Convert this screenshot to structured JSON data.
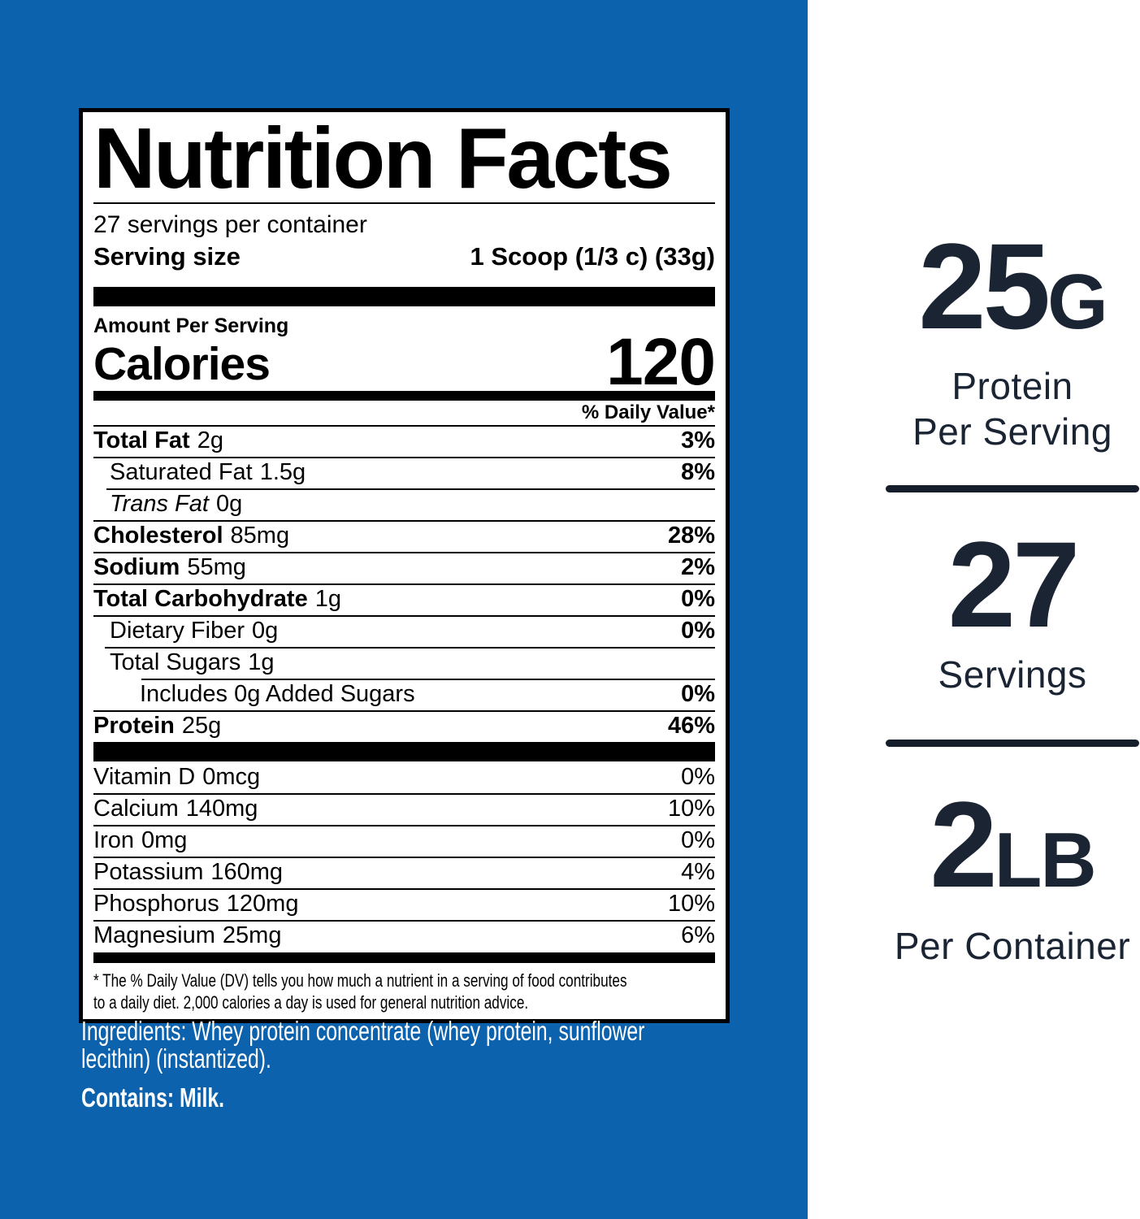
{
  "colors": {
    "background_blue": "#0d62ad",
    "label_background": "#ffffff",
    "label_ink": "#000000",
    "navy_ink": "#1a2433"
  },
  "label": {
    "title": "Nutrition Facts",
    "servings_per_container": "27 servings per container",
    "serving_size_label": "Serving size",
    "serving_size_value": "1 Scoop (1/3 c) (33g)",
    "amount_per_serving": "Amount Per Serving",
    "calories_label": "Calories",
    "calories_value": "120",
    "daily_value_header": "% Daily Value*",
    "nutrients": [
      {
        "name": "Total Fat",
        "amount": "2g",
        "dv": "3%",
        "indent": 0,
        "name_bold": true,
        "name_italic": false,
        "dv_bold": true,
        "divider_indent": 0
      },
      {
        "name": "Saturated Fat",
        "amount": "1.5g",
        "dv": "8%",
        "indent": 1,
        "name_bold": false,
        "name_italic": false,
        "dv_bold": true,
        "divider_indent": 0
      },
      {
        "name": "Trans Fat",
        "amount": "0g",
        "dv": "",
        "indent": 1,
        "name_bold": false,
        "name_italic": true,
        "dv_bold": true,
        "divider_indent": 16
      },
      {
        "name": "Cholesterol",
        "amount": "85mg",
        "dv": "28%",
        "indent": 0,
        "name_bold": true,
        "name_italic": false,
        "dv_bold": true,
        "divider_indent": 0
      },
      {
        "name": "Sodium",
        "amount": "55mg",
        "dv": "2%",
        "indent": 0,
        "name_bold": true,
        "name_italic": false,
        "dv_bold": true,
        "divider_indent": 0
      },
      {
        "name": "Total Carbohydrate",
        "amount": "1g",
        "dv": "0%",
        "indent": 0,
        "name_bold": true,
        "name_italic": false,
        "dv_bold": true,
        "divider_indent": 0
      },
      {
        "name": "Dietary Fiber",
        "amount": "0g",
        "dv": "0%",
        "indent": 1,
        "name_bold": false,
        "name_italic": false,
        "dv_bold": true,
        "divider_indent": 0
      },
      {
        "name": "Total Sugars",
        "amount": "1g",
        "dv": "",
        "indent": 1,
        "name_bold": false,
        "name_italic": false,
        "dv_bold": true,
        "divider_indent": 14
      },
      {
        "name": "Includes 0g Added Sugars",
        "amount": "",
        "dv": "0%",
        "indent": 2,
        "name_bold": false,
        "name_italic": false,
        "dv_bold": true,
        "divider_indent": 59
      },
      {
        "name": "Protein",
        "amount": "25g",
        "dv": "46%",
        "indent": 0,
        "name_bold": true,
        "name_italic": false,
        "dv_bold": true,
        "divider_indent": 0
      }
    ],
    "micronutrients": [
      {
        "name": "Vitamin D",
        "amount": "0mcg",
        "dv": "0%"
      },
      {
        "name": "Calcium",
        "amount": "140mg",
        "dv": "10%"
      },
      {
        "name": "Iron",
        "amount": "0mg",
        "dv": "0%"
      },
      {
        "name": "Potassium",
        "amount": "160mg",
        "dv": "4%"
      },
      {
        "name": "Phosphorus",
        "amount": "120mg",
        "dv": "10%"
      },
      {
        "name": "Magnesium",
        "amount": "25mg",
        "dv": "6%"
      }
    ],
    "footnote_line1": "* The % Daily Value (DV) tells you how much a nutrient in a serving of food contributes",
    "footnote_line2": "to a daily diet. 2,000 calories a day is used for general nutrition advice."
  },
  "ingredients": {
    "line1": "Ingredients: Whey protein concentrate (whey protein, sunflower",
    "line2": "lecithin) (instantized).",
    "contains": "Contains: Milk."
  },
  "highlights": [
    {
      "value": "25",
      "unit": "G",
      "caption_line1": "Protein",
      "caption_line2": "Per Serving"
    },
    {
      "value": "27",
      "unit": "",
      "caption_line1": "Servings",
      "caption_line2": ""
    },
    {
      "value": "2",
      "unit": "LB",
      "caption_line1": "Per Container",
      "caption_line2": ""
    }
  ]
}
